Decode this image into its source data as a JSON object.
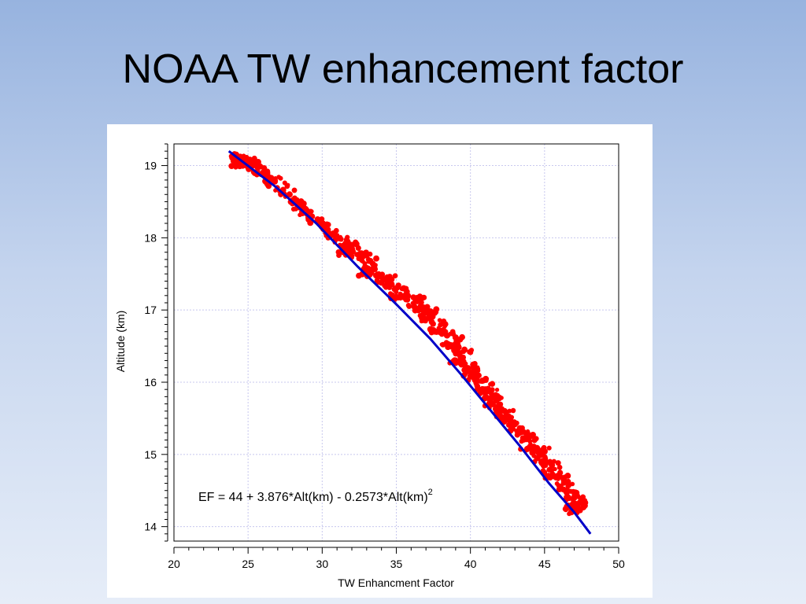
{
  "slide": {
    "title": "NOAA TW enhancement factor"
  },
  "colors": {
    "data_points": "#ff0000",
    "fit_line": "#0000c8",
    "grid": "#c8c8ee"
  },
  "chart_data": {
    "type": "scatter",
    "title": "",
    "xlabel": "TW Enhancment Factor",
    "ylabel": "Altitude (km)",
    "xlim": [
      20,
      50
    ],
    "ylim": [
      13.8,
      19.3
    ],
    "xticks": [
      20,
      25,
      30,
      35,
      40,
      45,
      50
    ],
    "yticks": [
      14,
      15,
      16,
      17,
      18,
      19
    ],
    "grid": true,
    "annotation": {
      "text": "EF = 44 + 3.876*Alt(km) - 0.2573*Alt(km)",
      "superscript": "2"
    },
    "series": [
      {
        "kind": "scatter",
        "points": [
          [
            24.2,
            19.15
          ],
          [
            24.5,
            19.1
          ],
          [
            24.3,
            19.05
          ],
          [
            24.6,
            19.0
          ],
          [
            25.0,
            19.08
          ],
          [
            25.3,
            19.0
          ],
          [
            26.0,
            18.9
          ],
          [
            26.8,
            18.78
          ],
          [
            27.8,
            18.6
          ],
          [
            28.5,
            18.42
          ],
          [
            29.2,
            18.28
          ],
          [
            30.0,
            18.15
          ],
          [
            30.8,
            18.05
          ],
          [
            31.6,
            17.92
          ],
          [
            32.0,
            17.85
          ],
          [
            31.5,
            17.8
          ],
          [
            32.8,
            17.75
          ],
          [
            33.5,
            17.6
          ],
          [
            33.0,
            17.5
          ],
          [
            34.5,
            17.45
          ],
          [
            34.0,
            17.38
          ],
          [
            35.5,
            17.3
          ],
          [
            35.0,
            17.18
          ],
          [
            36.3,
            17.15
          ],
          [
            36.5,
            17.02
          ],
          [
            37.3,
            16.98
          ],
          [
            36.8,
            16.88
          ],
          [
            38.2,
            16.82
          ],
          [
            37.5,
            16.72
          ],
          [
            39.0,
            16.62
          ],
          [
            38.5,
            16.5
          ],
          [
            39.6,
            16.45
          ],
          [
            39.0,
            16.3
          ],
          [
            40.2,
            16.2
          ],
          [
            40.0,
            16.08
          ],
          [
            40.8,
            16.02
          ],
          [
            41.0,
            15.9
          ],
          [
            41.5,
            15.82
          ],
          [
            41.5,
            15.7
          ],
          [
            42.3,
            15.6
          ],
          [
            42.2,
            15.5
          ],
          [
            43.0,
            15.42
          ],
          [
            43.3,
            15.3
          ],
          [
            43.8,
            15.25
          ],
          [
            44.0,
            15.1
          ],
          [
            44.8,
            15.05
          ],
          [
            44.5,
            14.95
          ],
          [
            45.5,
            14.85
          ],
          [
            45.5,
            14.7
          ],
          [
            46.3,
            14.65
          ],
          [
            46.5,
            14.5
          ],
          [
            47.0,
            14.4
          ],
          [
            47.2,
            14.3
          ],
          [
            46.8,
            14.2
          ],
          [
            47.5,
            14.35
          ]
        ]
      },
      {
        "kind": "fit_line",
        "points": [
          [
            23.7,
            19.2
          ],
          [
            26.9,
            18.7
          ],
          [
            29.6,
            18.2
          ],
          [
            32.4,
            17.6
          ],
          [
            34.9,
            17.1
          ],
          [
            37.3,
            16.6
          ],
          [
            39.4,
            16.1
          ],
          [
            41.4,
            15.6
          ],
          [
            43.4,
            15.1
          ],
          [
            45.3,
            14.6
          ],
          [
            47.0,
            14.2
          ],
          [
            48.1,
            13.9
          ]
        ]
      }
    ]
  }
}
